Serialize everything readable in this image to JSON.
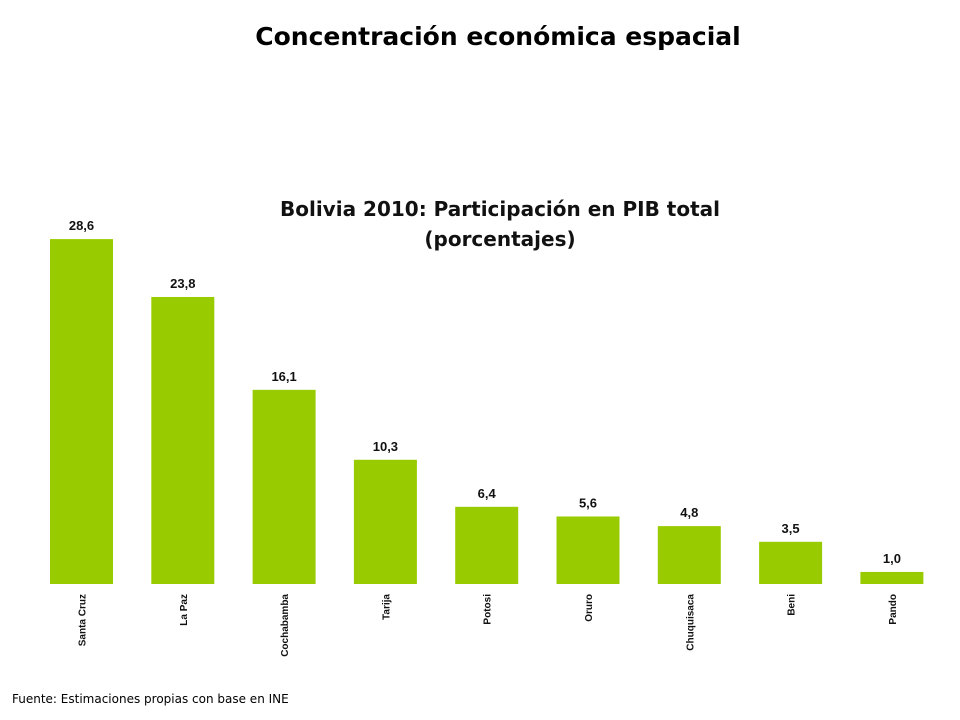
{
  "page": {
    "title": "Concentración económica espacial",
    "source": "Fuente: Estimaciones propias con base en INE"
  },
  "chart_data": {
    "type": "bar",
    "title_line1": "Bolivia 2010: Participación en PIB total",
    "title_line2": "(porcentajes)",
    "categories": [
      "Santa Cruz",
      "La Paz",
      "Cochabamba",
      "Tarija",
      "Potosi",
      "Oruro",
      "Chuquisaca",
      "Beni",
      "Pando"
    ],
    "values": [
      28.6,
      23.8,
      16.1,
      10.3,
      6.4,
      5.6,
      4.8,
      3.5,
      1.0
    ],
    "value_labels": [
      "28,6",
      "23,8",
      "16,1",
      "10,3",
      "6,4",
      "5,6",
      "4,8",
      "3,5",
      "1,0"
    ],
    "bar_color": "#99cc00",
    "grid": false,
    "legend": "none"
  }
}
